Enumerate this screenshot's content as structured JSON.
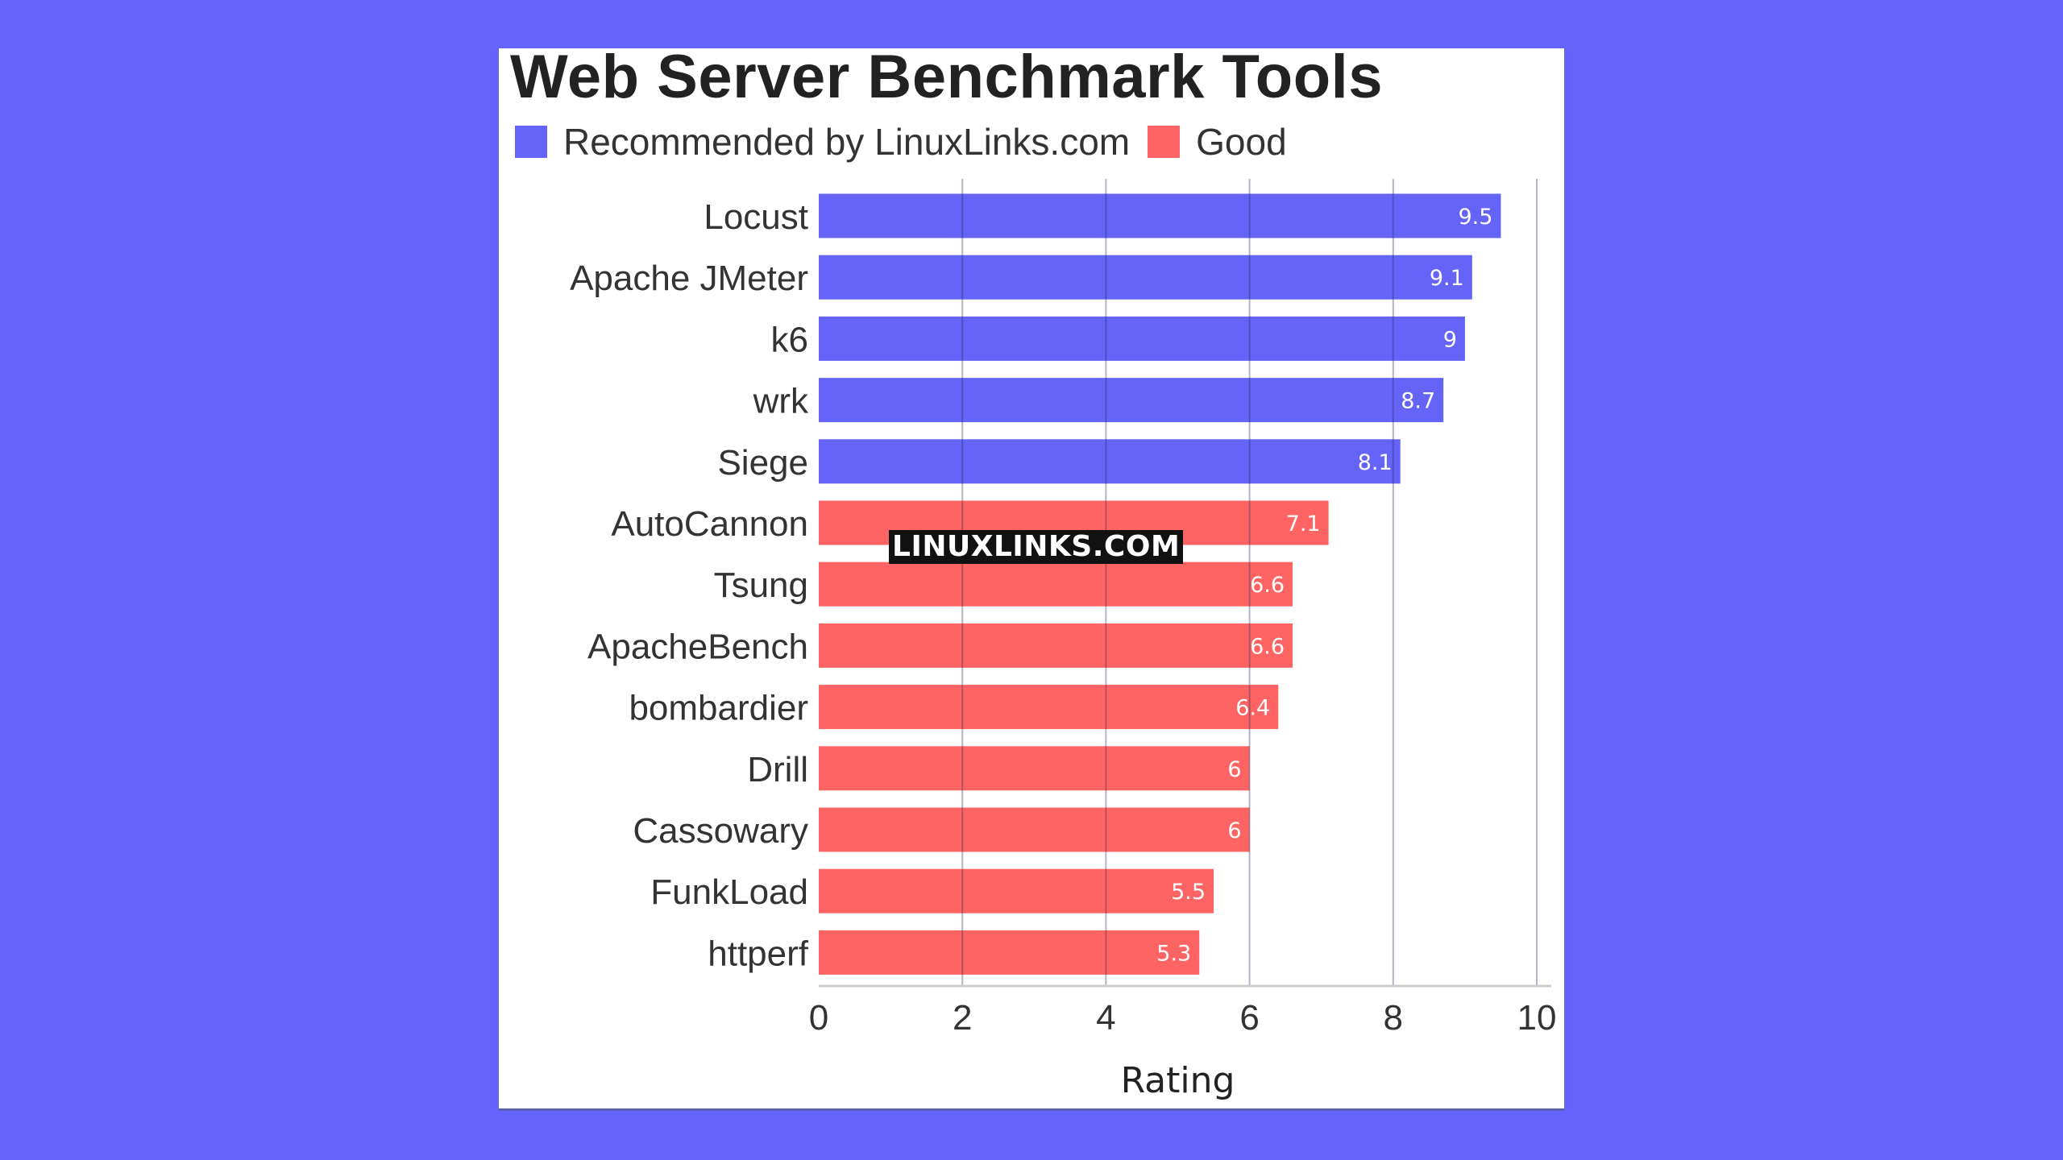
{
  "chart_data": {
    "type": "bar",
    "orientation": "horizontal",
    "title": "Web Server Benchmark Tools",
    "xlabel": "Rating",
    "ylabel": "",
    "xlim": [
      0,
      10
    ],
    "xticks": [
      0,
      2,
      4,
      6,
      8,
      10
    ],
    "grid": true,
    "legend_position": "top-left",
    "legend": [
      {
        "name": "Recommended by LinuxLinks.com",
        "color": "#6464f8"
      },
      {
        "name": "Good",
        "color": "#ff6464"
      }
    ],
    "categories": [
      "Locust",
      "Apache JMeter",
      "k6",
      "wrk",
      "Siege",
      "AutoCannon",
      "Tsung",
      "ApacheBench",
      "bombardier",
      "Drill",
      "Cassowary",
      "FunkLoad",
      "httperf"
    ],
    "values": [
      9.5,
      9.1,
      9,
      8.7,
      8.1,
      7.1,
      6.6,
      6.6,
      6.4,
      6,
      6,
      5.5,
      5.3
    ],
    "value_labels": [
      "9.5",
      "9.1",
      "9",
      "8.7",
      "8.1",
      "7.1",
      "6.6",
      "6.6",
      "6.4",
      "6",
      "6",
      "5.5",
      "5.3"
    ],
    "groups": [
      "Recommended by LinuxLinks.com",
      "Recommended by LinuxLinks.com",
      "Recommended by LinuxLinks.com",
      "Recommended by LinuxLinks.com",
      "Recommended by LinuxLinks.com",
      "Good",
      "Good",
      "Good",
      "Good",
      "Good",
      "Good",
      "Good",
      "Good"
    ]
  },
  "watermark": "LINUXLINKS.COM",
  "colors": {
    "page_background": "#6464fc",
    "panel": "#ffffff"
  }
}
